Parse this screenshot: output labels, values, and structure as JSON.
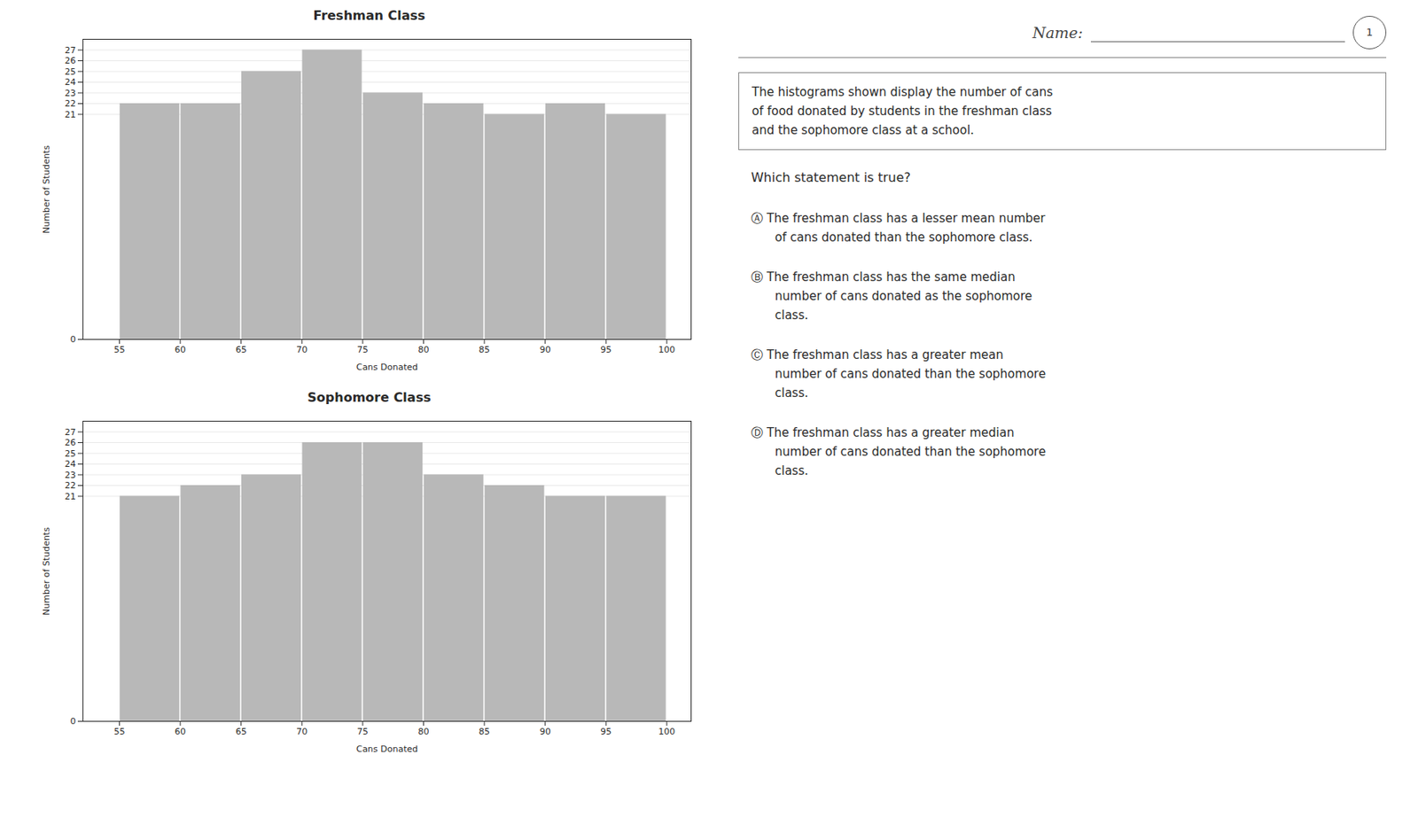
{
  "chart_data": [
    {
      "type": "histogram",
      "title": "Freshman Class",
      "bins": [
        55,
        60,
        65,
        70,
        75,
        80,
        85,
        90,
        95,
        100
      ],
      "values": [
        22,
        22,
        25,
        27,
        23,
        22,
        21,
        22,
        21
      ],
      "color": "#b8b8b8",
      "xlabel": "Cans Donated",
      "ylabel": "Number of Students",
      "xlim": [
        52,
        102
      ],
      "xticks": [
        55,
        60,
        65,
        70,
        75,
        80,
        85,
        90,
        95,
        100
      ],
      "ylim": [
        0,
        28
      ],
      "yticks": [
        0,
        21,
        22,
        23,
        24,
        25,
        26,
        27
      ],
      "grid": true
    },
    {
      "type": "histogram",
      "title": "Sophomore Class",
      "bins": [
        55,
        60,
        65,
        70,
        75,
        80,
        85,
        90,
        95,
        100
      ],
      "values": [
        21,
        22,
        23,
        26,
        26,
        23,
        22,
        21,
        21
      ],
      "color": "#b8b8b8",
      "xlabel": "Cans Donated",
      "ylabel": "Number of Students",
      "xlim": [
        52,
        102
      ],
      "xticks": [
        55,
        60,
        65,
        70,
        75,
        80,
        85,
        90,
        95,
        100
      ],
      "ylim": [
        0,
        28
      ],
      "yticks": [
        0,
        21,
        22,
        23,
        24,
        25,
        26,
        27
      ],
      "grid": true
    }
  ],
  "annotations": [
    [
      "Name:",
      "1"
    ],
    [
      "The histograms shown display the number of cans",
      "of food donated by students in the freshman class",
      "and the sophomore class at a school."
    ],
    [
      "Which statement is true?"
    ],
    [
      "Ⓐ  The freshman class has a lesser mean number",
      "of cans donated than the sophomore class."
    ],
    [
      "Ⓑ  The freshman class has the same median",
      "number of cans donated as the sophomore",
      "class."
    ],
    [
      "Ⓒ  The freshman class has a greater mean",
      "number of cans donated than the sophomore",
      "class."
    ],
    [
      "Ⓓ  The freshman class has a greater median",
      "number of cans donated than the sophomore",
      "class."
    ]
  ]
}
